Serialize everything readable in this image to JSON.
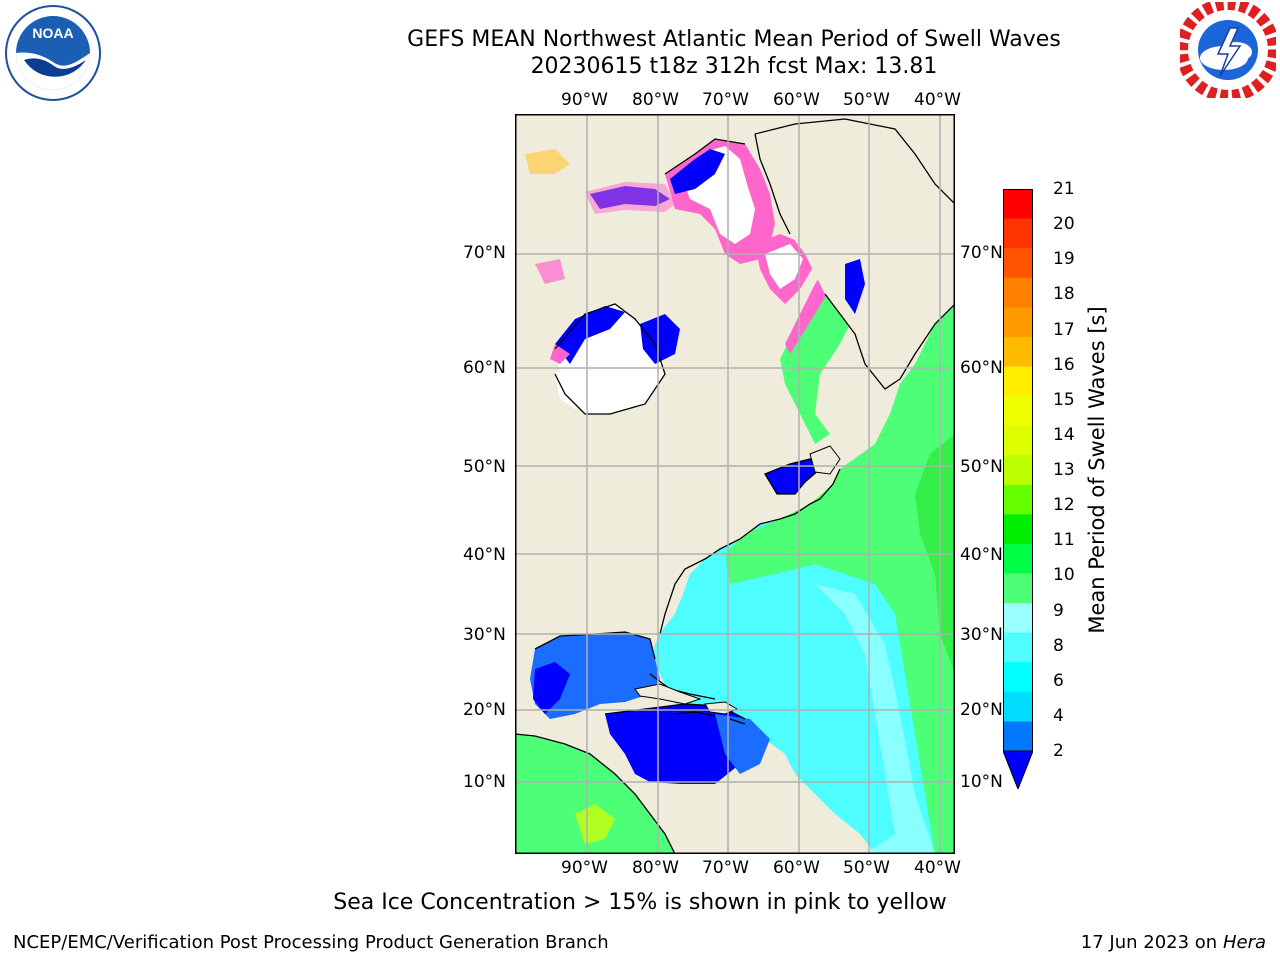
{
  "header": {
    "title_line1": "GEFS MEAN Northwest Atlantic Mean Period of Swell Waves",
    "title_line2": "20230615 t18z 312h fcst   Max: 13.81"
  },
  "logos": {
    "left": {
      "name": "NOAA",
      "text": "NOAA",
      "ring_text": "NATIONAL OCEANIC AND ATMOSPHERIC ADMINISTRATION · U.S. DEPARTMENT OF COMMERCE"
    },
    "right": {
      "name": "National Weather Service",
      "ring_text": "NATIONAL WEATHER SERVICE"
    }
  },
  "map": {
    "lon_labels": [
      "90°W",
      "80°W",
      "70°W",
      "60°W",
      "50°W",
      "40°W"
    ],
    "lat_labels": [
      "70°N",
      "60°N",
      "50°N",
      "40°N",
      "30°N",
      "20°N",
      "10°N"
    ],
    "colors": {
      "land": "#efecdc",
      "ice_white": "#ffffff",
      "ice_pink": "#ff66cc",
      "ice_magenta": "#ff33ff",
      "ocean_blue_dark": "#0000ff",
      "ocean_blue": "#1a6dff",
      "ocean_cyan": "#4dfdff",
      "ocean_light": "#99ffff",
      "ocean_green": "#4dff77",
      "ocean_green_dark": "#22e022",
      "grid": "#b0b0b0"
    }
  },
  "colorbar": {
    "label": "Mean Period of Swell Waves [s]",
    "ticks": [
      "21",
      "20",
      "19",
      "18",
      "17",
      "16",
      "15",
      "14",
      "13",
      "12",
      "11",
      "10",
      "9",
      "8",
      "6",
      "4",
      "2"
    ],
    "colors": [
      "#ff0000",
      "#ff3300",
      "#ff5500",
      "#ff8000",
      "#ff9900",
      "#ffbb00",
      "#ffee00",
      "#eeff00",
      "#ddff00",
      "#bbff00",
      "#66ff00",
      "#00ee00",
      "#00ff44",
      "#4dff77",
      "#99ffff",
      "#4dfdff",
      "#00ffff",
      "#00ddff",
      "#0077ff",
      "#0000ff"
    ]
  },
  "footer": {
    "note": "Sea Ice Concentration > 15% is shown in pink to yellow",
    "credit_left": "NCEP/EMC/Verification Post Processing Product Generation Branch",
    "credit_date": "17 Jun 2023 on",
    "credit_host": "Hera"
  }
}
